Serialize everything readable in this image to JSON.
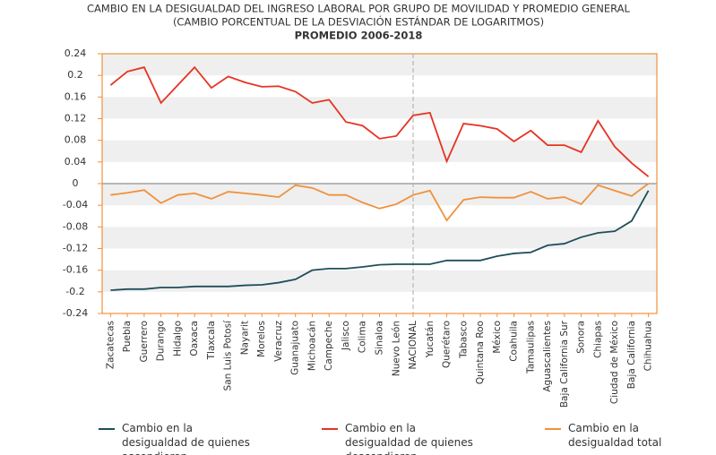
{
  "chart_data": {
    "type": "line",
    "title": "CAMBIO EN LA DESIGUALDAD DEL INGRESO LABORAL POR GRUPO DE MOVILIDAD Y PROMEDIO GENERAL",
    "subtitle": "(CAMBIO PORCENTUAL DE LA DESVIACIÓN ESTÁNDAR DE LOGARITMOS)",
    "period": "PROMEDIO 2006-2018",
    "categories": [
      "Zacatecas",
      "Puebla",
      "Guerrero",
      "Durango",
      "Hidalgo",
      "Oaxaca",
      "Tlaxcala",
      "San Luis Potosí",
      "Nayarit",
      "Morelos",
      "Veracruz",
      "Guanajuato",
      "Michoacán",
      "Campeche",
      "Jalisco",
      "Colima",
      "Sinaloa",
      "Nuevo León",
      "NACIONAL",
      "Yucatán",
      "Querétaro",
      "Tabasco",
      "Quintana Roo",
      "México",
      "Coahuila",
      "Tamaulipas",
      "Aguascalientes",
      "Baja California Sur",
      "Sonora",
      "Chiapas",
      "Ciudad de México",
      "Baja California",
      "Chihuahua"
    ],
    "series": [
      {
        "name": "Cambio en la desigualdad de quienes ascendieron",
        "color": "#1f4e5a",
        "values": [
          -0.197,
          -0.195,
          -0.195,
          -0.192,
          -0.192,
          -0.19,
          -0.19,
          -0.19,
          -0.188,
          -0.187,
          -0.183,
          -0.177,
          -0.16,
          -0.157,
          -0.157,
          -0.154,
          -0.15,
          -0.149,
          -0.149,
          -0.149,
          -0.142,
          -0.142,
          -0.142,
          -0.134,
          -0.129,
          -0.127,
          -0.114,
          -0.111,
          -0.099,
          -0.091,
          -0.088,
          -0.069,
          -0.013
        ]
      },
      {
        "name": "Cambio en la desigualdad de quienes descendieron",
        "color": "#e63323",
        "values": [
          0.182,
          0.207,
          0.215,
          0.149,
          0.182,
          0.215,
          0.177,
          0.198,
          0.187,
          0.179,
          0.18,
          0.17,
          0.149,
          0.155,
          0.114,
          0.107,
          0.083,
          0.088,
          0.126,
          0.131,
          0.041,
          0.111,
          0.107,
          0.101,
          0.078,
          0.098,
          0.071,
          0.071,
          0.058,
          0.116,
          0.068,
          0.038,
          0.013
        ]
      },
      {
        "name": "Cambio en la desigualdad total",
        "color": "#f0913c",
        "values": [
          -0.021,
          -0.017,
          -0.012,
          -0.036,
          -0.021,
          -0.018,
          -0.028,
          -0.015,
          -0.018,
          -0.021,
          -0.025,
          -0.003,
          -0.008,
          -0.021,
          -0.021,
          -0.035,
          -0.046,
          -0.038,
          -0.021,
          -0.013,
          -0.068,
          -0.03,
          -0.025,
          -0.026,
          -0.026,
          -0.015,
          -0.028,
          -0.025,
          -0.038,
          -0.003,
          -0.013,
          -0.023,
          0
        ]
      }
    ],
    "ylim": [
      -0.24,
      0.24
    ],
    "yticks": [
      0.24,
      0.2,
      0.16,
      0.12,
      0.08,
      0.04,
      0,
      -0.04,
      -0.08,
      -0.12,
      -0.16,
      -0.2,
      -0.24
    ],
    "grid": true
  }
}
